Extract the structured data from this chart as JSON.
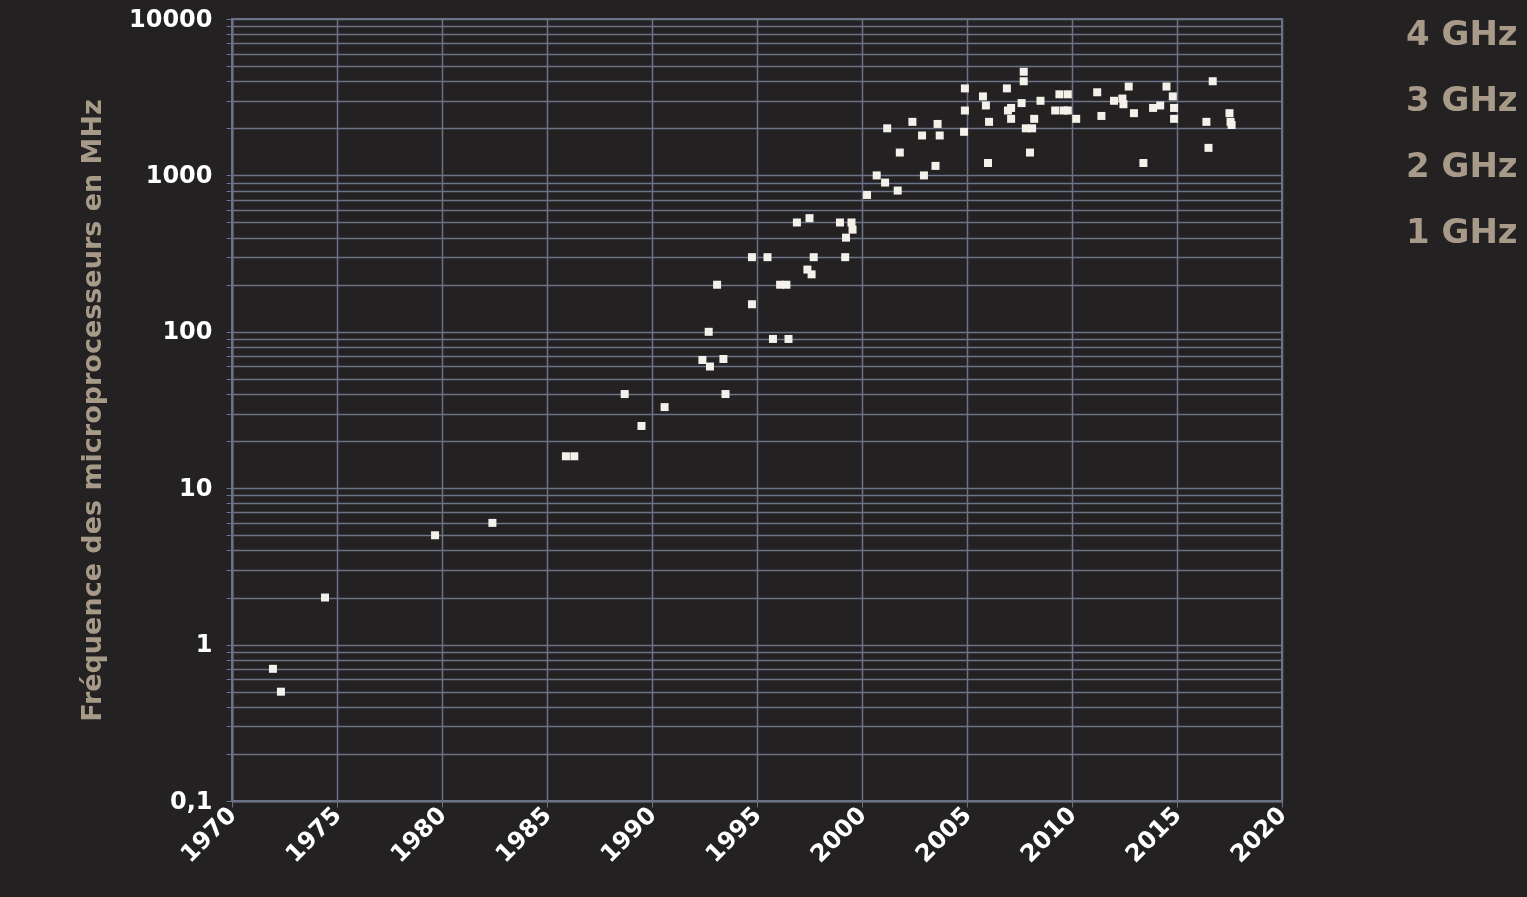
{
  "chart_data": {
    "type": "scatter",
    "ylabel": "Fréquence des microprocesseurs en MHz",
    "x": [
      1971.95,
      1972.33,
      1974.43,
      1979.67,
      1982.4,
      1985.9,
      1986.3,
      1988.7,
      1989.5,
      1990.6,
      1992.4,
      1992.7,
      1992.76,
      1993.1,
      1993.4,
      1993.5,
      1994.76,
      1994.76,
      1995.5,
      1995.76,
      1996.1,
      1996.4,
      1996.5,
      1996.9,
      1997.4,
      1997.5,
      1997.6,
      1997.7,
      1998.95,
      1999.2,
      1999.24,
      1999.5,
      1999.55,
      2000.24,
      2000.7,
      2001.1,
      2001.2,
      2001.7,
      2001.8,
      2002.4,
      2002.86,
      2002.95,
      2003.5,
      2003.6,
      2003.7,
      2004.86,
      2004.9,
      2004.9,
      2005.76,
      2005.9,
      2006.0,
      2006.05,
      2006.9,
      2006.95,
      2007.1,
      2007.1,
      2007.6,
      2007.7,
      2007.7,
      2007.8,
      2008.1,
      2008.0,
      2008.2,
      2008.5,
      2009.2,
      2009.4,
      2009.6,
      2009.8,
      2009.8,
      2010.2,
      2011.2,
      2011.4,
      2012.0,
      2012.4,
      2012.45,
      2012.7,
      2012.95,
      2013.4,
      2013.86,
      2014.2,
      2014.5,
      2014.8,
      2014.86,
      2014.86,
      2016.4,
      2016.5,
      2016.7,
      2017.5,
      2017.55,
      2017.6
    ],
    "series": [
      {
        "color": "#f4f1ea",
        "values": [
          0.7,
          0.5,
          2,
          5,
          6,
          16,
          16,
          40,
          25,
          33,
          66,
          100,
          60,
          200,
          67,
          40,
          300,
          150,
          300,
          90,
          200,
          200,
          90,
          500,
          250,
          533,
          233,
          300,
          500,
          300,
          400,
          500,
          450,
          750,
          1000,
          900,
          2000,
          800,
          1400,
          2200,
          1800,
          1000,
          1150,
          2133,
          1800,
          1900,
          3600,
          2600,
          3200,
          2800,
          1200,
          2200,
          3600,
          2600,
          2700,
          2300,
          2900,
          4600,
          4000,
          2000,
          2000,
          1400,
          2300,
          3000,
          2600,
          3300,
          2600,
          2600,
          3300,
          2300,
          3400,
          2400,
          3000,
          3100,
          2850,
          3700,
          2500,
          1200,
          2700,
          2800,
          3700,
          3200,
          2700,
          2300,
          2200,
          1500,
          4000,
          2500,
          2200,
          2100
        ]
      }
    ],
    "marker": "square",
    "log": true,
    "grid": true,
    "xlim": [
      1970,
      2020
    ],
    "xticks": [
      1970,
      1975,
      1980,
      1985,
      1990,
      1995,
      2000,
      2005,
      2010,
      2015,
      2020
    ],
    "ylim": [
      0.1,
      10000
    ],
    "yticks": [
      {
        "value": 0.1,
        "label": "0,1"
      },
      {
        "value": 0.2,
        "label": null
      },
      {
        "value": 0.3,
        "label": null
      },
      {
        "value": 0.4,
        "label": null
      },
      {
        "value": 0.5,
        "label": null
      },
      {
        "value": 0.6,
        "label": null
      },
      {
        "value": 0.7,
        "label": null
      },
      {
        "value": 0.8,
        "label": null
      },
      {
        "value": 0.9,
        "label": null
      },
      1,
      {
        "value": 2,
        "label": null
      },
      {
        "value": 3,
        "label": null
      },
      {
        "value": 4,
        "label": null
      },
      {
        "value": 5,
        "label": null
      },
      {
        "value": 6,
        "label": null
      },
      {
        "value": 7,
        "label": null
      },
      {
        "value": 8,
        "label": null
      },
      {
        "value": 9,
        "label": null
      },
      10,
      {
        "value": 20,
        "label": null
      },
      {
        "value": 30,
        "label": null
      },
      {
        "value": 40,
        "label": null
      },
      {
        "value": 50,
        "label": null
      },
      {
        "value": 60,
        "label": null
      },
      {
        "value": 70,
        "label": null
      },
      {
        "value": 80,
        "label": null
      },
      {
        "value": 90,
        "label": null
      },
      100,
      {
        "value": 200,
        "label": null
      },
      {
        "value": 300,
        "label": null
      },
      {
        "value": 400,
        "label": null
      },
      {
        "value": 500,
        "label": null
      },
      {
        "value": 600,
        "label": null
      },
      {
        "value": 700,
        "label": null
      },
      {
        "value": 800,
        "label": null
      },
      {
        "value": 900,
        "label": null
      },
      1000,
      {
        "value": 2000,
        "label": null
      },
      {
        "value": 3000,
        "label": null
      },
      {
        "value": 4000,
        "label": null
      },
      {
        "value": 5000,
        "label": null
      },
      {
        "value": 6000,
        "label": null
      },
      {
        "value": 7000,
        "label": null
      },
      {
        "value": 8000,
        "label": null
      },
      {
        "value": 9000,
        "label": null
      },
      10000
    ],
    "annotations": [
      "4 GHz",
      "3 GHz",
      "2 GHz",
      "1 GHz"
    ]
  }
}
